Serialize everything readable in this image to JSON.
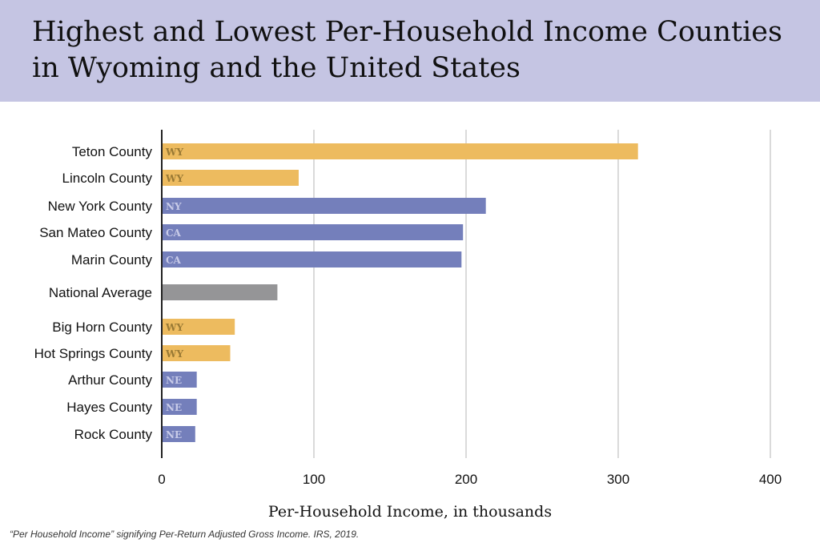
{
  "title": "Highest and Lowest Per-Household Income Counties in Wyoming and the United States",
  "footnote": "“Per Household Income” signifying Per-Return Adjusted Gross Income. IRS, 2019.",
  "colors": {
    "WY": "#edbb5f",
    "other": "#747fbb",
    "national": "#959597",
    "banner": "#c5c5e3"
  },
  "chart_data": {
    "type": "bar",
    "orientation": "horizontal",
    "title": "Highest and Lowest Per-Household Income Counties in Wyoming and the United States",
    "xlabel": "Per-Household Income, in thousands",
    "ylabel": "",
    "xlim": [
      0,
      400
    ],
    "xticks": [
      0,
      100,
      200,
      300,
      400
    ],
    "grid": true,
    "categories": [
      "Teton County",
      "Lincoln County",
      "New York County",
      "San Mateo County",
      "Marin County",
      "National Average",
      "Big Horn County",
      "Hot Springs County",
      "Arthur County",
      "Hayes County",
      "Rock County"
    ],
    "values": [
      313,
      90,
      213,
      198,
      197,
      76,
      48,
      45,
      23,
      23,
      22
    ],
    "states": [
      "WY",
      "WY",
      "NY",
      "CA",
      "CA",
      "",
      "WY",
      "WY",
      "NE",
      "NE",
      "NE"
    ]
  }
}
